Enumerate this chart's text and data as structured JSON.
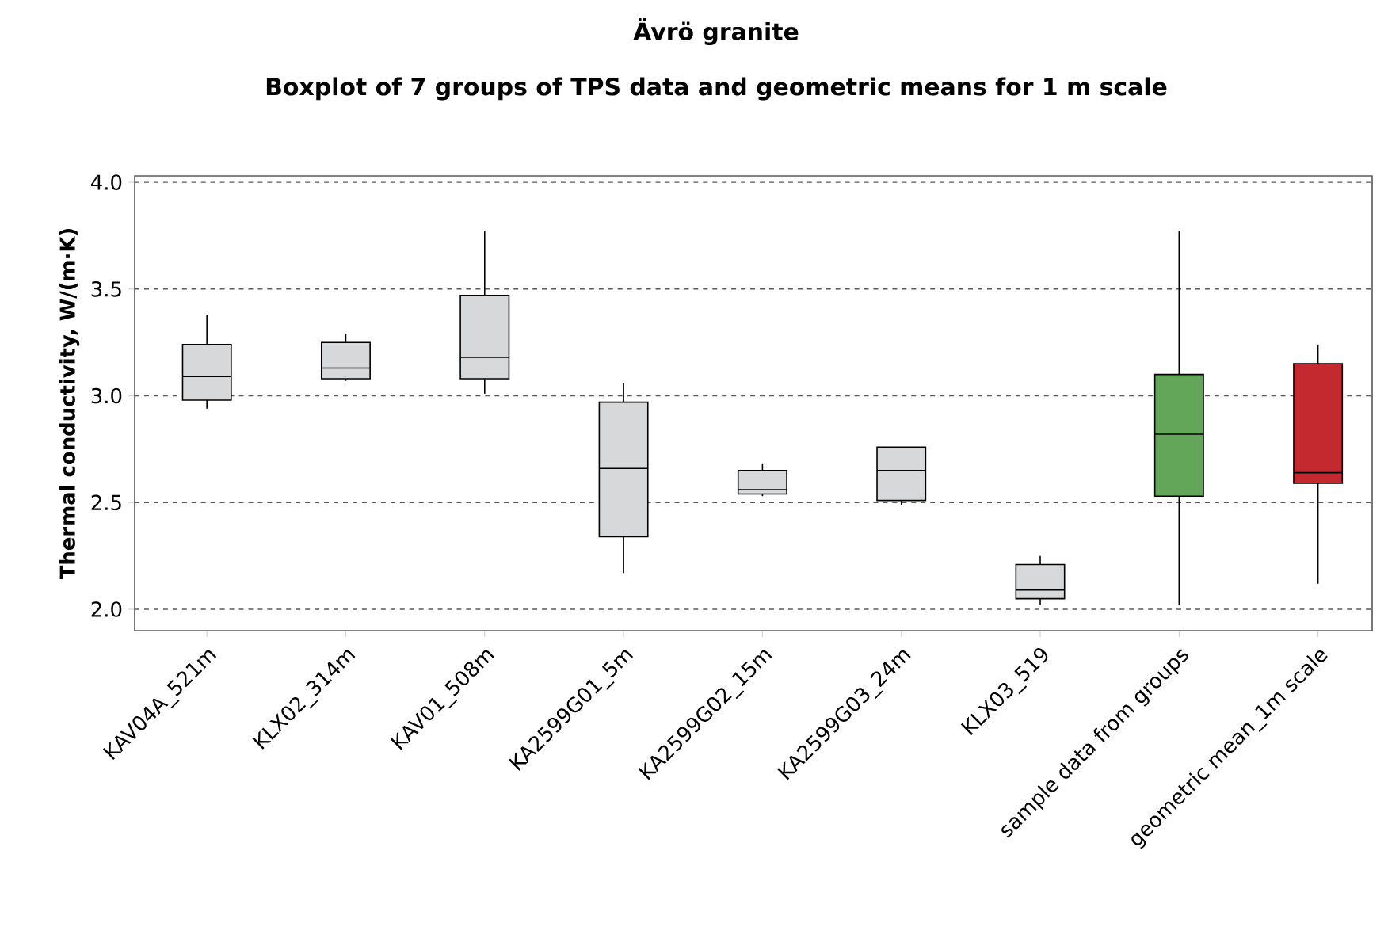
{
  "chart_data": {
    "type": "box",
    "title": "Ävrö granite",
    "subtitle": "Boxplot of 7 groups of TPS data and geometric means for 1 m scale",
    "ylabel": "Thermal conductivity, W/(m·K)",
    "categories": [
      "KAV04A_521m",
      "KLX02_314m",
      "KAV01_508m",
      "KA2599G01_5m",
      "KA2599G02_15m",
      "KA2599G03_24m",
      "KLX03_519",
      "sample data from groups",
      "geometric mean_1m scale"
    ],
    "boxes": [
      {
        "low": 2.94,
        "q1": 2.98,
        "median": 3.09,
        "q3": 3.24,
        "high": 3.38
      },
      {
        "low": 3.07,
        "q1": 3.08,
        "median": 3.13,
        "q3": 3.25,
        "high": 3.29
      },
      {
        "low": 3.01,
        "q1": 3.08,
        "median": 3.18,
        "q3": 3.47,
        "high": 3.77
      },
      {
        "low": 2.17,
        "q1": 2.34,
        "median": 2.66,
        "q3": 2.97,
        "high": 3.06
      },
      {
        "low": 2.53,
        "q1": 2.54,
        "median": 2.56,
        "q3": 2.65,
        "high": 2.68
      },
      {
        "low": 2.49,
        "q1": 2.51,
        "median": 2.65,
        "q3": 2.76,
        "high": 2.76
      },
      {
        "low": 2.02,
        "q1": 2.05,
        "median": 2.09,
        "q3": 2.21,
        "high": 2.25
      },
      {
        "low": 2.02,
        "q1": 2.53,
        "median": 2.82,
        "q3": 3.1,
        "high": 3.77
      },
      {
        "low": 2.12,
        "q1": 2.59,
        "median": 2.64,
        "q3": 3.15,
        "high": 3.24
      }
    ],
    "colors": [
      "#d7d8da",
      "#d7d8da",
      "#d7d8da",
      "#d7d8da",
      "#d7d8da",
      "#d7d8da",
      "#d7d8da",
      "#63a65a",
      "#c4292f"
    ],
    "ylim": [
      1.9,
      4.03
    ],
    "yticks": [
      {
        "value": 2,
        "label": "2.0"
      },
      {
        "value": 2.5,
        "label": "2.5"
      },
      {
        "value": 3,
        "label": "3.0"
      },
      {
        "value": 3.5,
        "label": "3.5"
      },
      {
        "value": 4,
        "label": "4.0"
      }
    ],
    "grid": "y"
  }
}
